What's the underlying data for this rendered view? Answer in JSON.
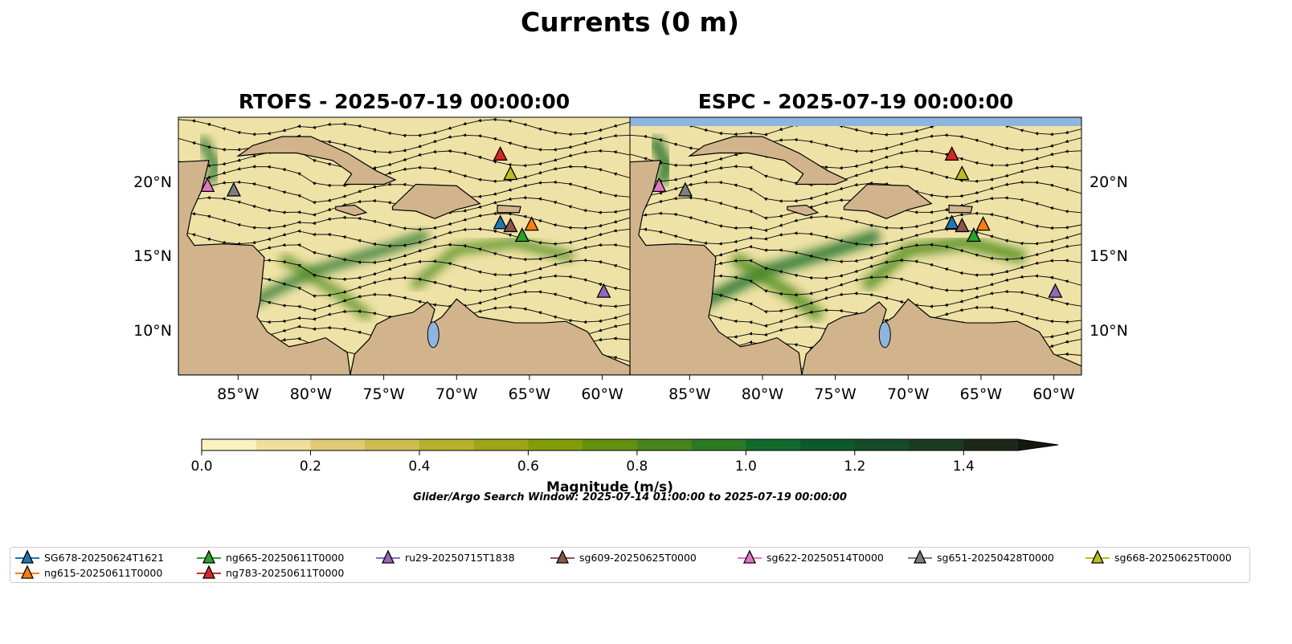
{
  "figure": {
    "title": "Currents (0 m)",
    "window_text": "Glider/Argo Search Window: 2025-07-14 01:00:00 to 2025-07-19 00:00:00"
  },
  "panels": [
    {
      "title": "RTOFS - 2025-07-19 00:00:00"
    },
    {
      "title": "ESPC - 2025-07-19 00:00:00"
    }
  ],
  "axes": {
    "lon_ticks": [
      {
        "value": -85,
        "label": "85°W"
      },
      {
        "value": -80,
        "label": "80°W"
      },
      {
        "value": -75,
        "label": "75°W"
      },
      {
        "value": -70,
        "label": "70°W"
      },
      {
        "value": -65,
        "label": "65°W"
      },
      {
        "value": -60,
        "label": "60°W"
      }
    ],
    "lat_ticks": [
      {
        "value": 20,
        "label": "20°N"
      },
      {
        "value": 15,
        "label": "15°N"
      },
      {
        "value": 10,
        "label": "10°N"
      }
    ],
    "lon_range": [
      -89.1,
      -58.1
    ],
    "lat_range": [
      7.1,
      24.4
    ]
  },
  "colorbar": {
    "label": "Magnitude (m/s)",
    "range": [
      0,
      1.5
    ],
    "extend": "max",
    "ticks": [
      "0.0",
      "0.2",
      "0.4",
      "0.6",
      "0.8",
      "1.0",
      "1.2",
      "1.4"
    ],
    "colors": [
      "#f8f3c0",
      "#efdf9c",
      "#e0ca74",
      "#cfbb50",
      "#b6b02e",
      "#9ea617",
      "#829d0a",
      "#63900f",
      "#478419",
      "#2b7a22",
      "#126a2d",
      "#0b5a2a",
      "#164a29",
      "#1c3a22",
      "#1c2818",
      "#14180f"
    ]
  },
  "gliders": [
    {
      "name": "SG678-20250624T1621",
      "color": "#1f77b4",
      "lon": -67.0,
      "lat": 17.3
    },
    {
      "name": "ng615-20250611T0000",
      "color": "#ff7f0e",
      "lon": -64.85,
      "lat": 17.2
    },
    {
      "name": "ng665-20250611T0000",
      "color": "#2ca02c",
      "lon": -65.5,
      "lat": 16.45
    },
    {
      "name": "ng783-20250611T0000",
      "color": "#d62728",
      "lon": -67.0,
      "lat": 21.9
    },
    {
      "name": "ru29-20250715T1838",
      "color": "#9467bd",
      "lon": -59.9,
      "lat": 12.7
    },
    {
      "name": "sg609-20250625T0000",
      "color": "#8c564b",
      "lon": -66.3,
      "lat": 17.1
    },
    {
      "name": "sg622-20250514T0000",
      "color": "#e377c2",
      "lon": -87.1,
      "lat": 19.8
    },
    {
      "name": "sg651-20250428T0000",
      "color": "#7f7f7f",
      "lon": -85.3,
      "lat": 19.5
    },
    {
      "name": "sg668-20250625T0000",
      "color": "#bcbd22",
      "lon": -66.3,
      "lat": 20.6
    }
  ],
  "colors": {
    "land": "#d2b48c",
    "ocean_base": "#efe2a6",
    "espc_nodata": "#8fb4e0"
  }
}
